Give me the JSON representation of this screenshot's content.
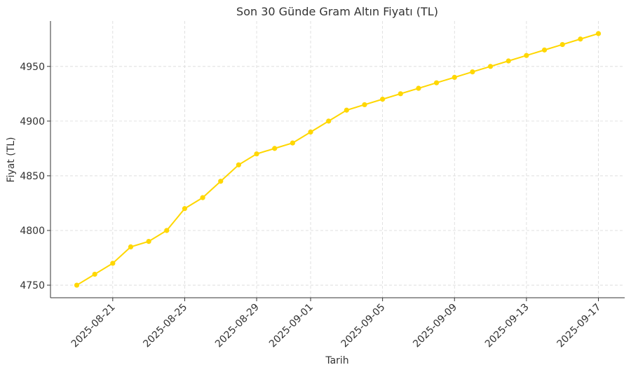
{
  "chart_data": {
    "type": "line",
    "title": "Son 30 Günde Gram Altın Fiyatı (TL)",
    "xlabel": "Tarih",
    "ylabel": "Fiyat (TL)",
    "x": [
      "2025-08-19",
      "2025-08-20",
      "2025-08-21",
      "2025-08-22",
      "2025-08-23",
      "2025-08-24",
      "2025-08-25",
      "2025-08-26",
      "2025-08-27",
      "2025-08-28",
      "2025-08-29",
      "2025-08-30",
      "2025-08-31",
      "2025-09-01",
      "2025-09-02",
      "2025-09-03",
      "2025-09-04",
      "2025-09-05",
      "2025-09-06",
      "2025-09-07",
      "2025-09-08",
      "2025-09-09",
      "2025-09-10",
      "2025-09-11",
      "2025-09-12",
      "2025-09-13",
      "2025-09-14",
      "2025-09-15",
      "2025-09-16",
      "2025-09-17"
    ],
    "series": [
      {
        "values": [
          4750,
          4760,
          4770,
          4785,
          4790,
          4800,
          4820,
          4830,
          4845,
          4860,
          4870,
          4875,
          4880,
          4890,
          4900,
          4910,
          4915,
          4920,
          4925,
          4930,
          4935,
          4940,
          4945,
          4950,
          4955,
          4960,
          4965,
          4970,
          4975,
          4980
        ],
        "color": "#ffd700"
      }
    ],
    "x_ticks": [
      "2025-08-21",
      "2025-08-25",
      "2025-08-29",
      "2025-09-01",
      "2025-09-05",
      "2025-09-09",
      "2025-09-13",
      "2025-09-17"
    ],
    "y_ticks": [
      4750,
      4800,
      4850,
      4900,
      4950
    ],
    "ylim": [
      4738.5,
      4991.5
    ],
    "grid": true,
    "legend": "none"
  }
}
